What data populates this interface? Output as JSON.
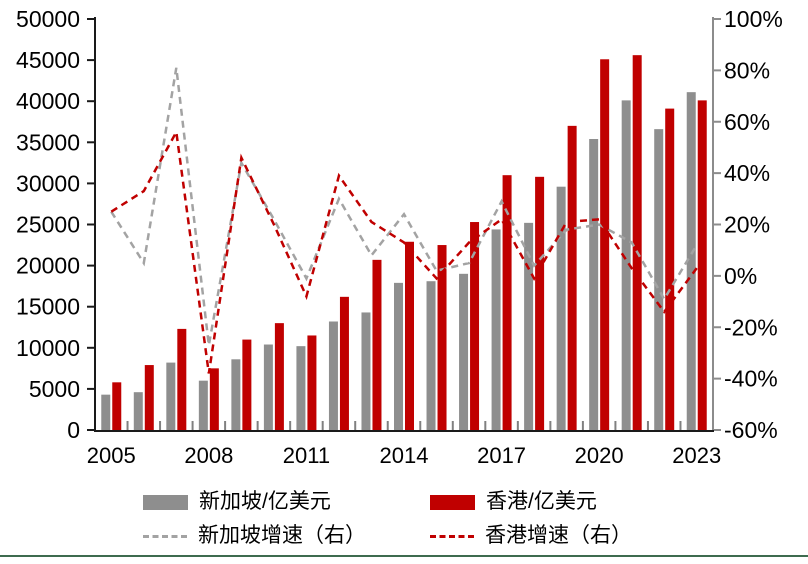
{
  "chart_data": {
    "type": "combo-bar-line",
    "title": "",
    "categories": [
      2005,
      2006,
      2007,
      2008,
      2009,
      2010,
      2011,
      2012,
      2013,
      2014,
      2015,
      2016,
      2017,
      2018,
      2019,
      2020,
      2021,
      2022,
      2023
    ],
    "x_tick_labels": [
      "2005",
      "2008",
      "2011",
      "2014",
      "2017",
      "2020",
      "2023"
    ],
    "left_axis": {
      "min": 0,
      "max": 50000,
      "step": 5000,
      "tick_labels": [
        "0",
        "5000",
        "10000",
        "15000",
        "20000",
        "25000",
        "30000",
        "35000",
        "40000",
        "45000",
        "50000"
      ]
    },
    "right_axis": {
      "min": -60,
      "max": 100,
      "step": 20,
      "tick_labels": [
        "-60%",
        "-40%",
        "-20%",
        "0%",
        "20%",
        "40%",
        "60%",
        "80%",
        "100%"
      ]
    },
    "grid": false,
    "legend_position": "bottom",
    "series": [
      {
        "name": "新加坡/亿美元",
        "type": "bar",
        "axis": "left",
        "color": "#8e8e8e",
        "values": [
          4300,
          4600,
          8200,
          6000,
          8600,
          10400,
          10200,
          13200,
          14300,
          17900,
          18100,
          19000,
          24400,
          25200,
          29600,
          35400,
          40100,
          36600,
          41100
        ]
      },
      {
        "name": "香港/亿美元",
        "type": "bar",
        "axis": "left",
        "color": "#c00000",
        "values": [
          5800,
          7900,
          12300,
          7500,
          11000,
          13000,
          11500,
          16200,
          20700,
          22900,
          22500,
          25300,
          31000,
          30800,
          37000,
          45100,
          45600,
          39100,
          40100
        ]
      },
      {
        "name": "新加坡增速（右）",
        "type": "line",
        "dashed": true,
        "axis": "right",
        "color": "#a3a3a3",
        "values_pct": [
          25,
          5,
          81,
          -27,
          44,
          22,
          -1,
          30,
          8,
          24,
          2,
          5,
          29,
          4,
          18,
          20,
          13,
          -9,
          12
        ]
      },
      {
        "name": "香港增速（右）",
        "type": "line",
        "dashed": true,
        "axis": "right",
        "color": "#c00000",
        "values_pct": [
          25,
          33,
          56,
          -38,
          46,
          20,
          -8,
          39,
          21,
          13,
          -1,
          13,
          22,
          -1,
          21,
          22,
          3,
          -14,
          3
        ]
      }
    ],
    "colors": {
      "axis_left": "#1a1a1a",
      "axis_right": "#8c8c8c",
      "axis_bottom": "#1a1a1a",
      "x_tick": "#808080",
      "label_text": "#000000"
    }
  },
  "footer": {
    "divider_color": "#3e6b4f"
  }
}
